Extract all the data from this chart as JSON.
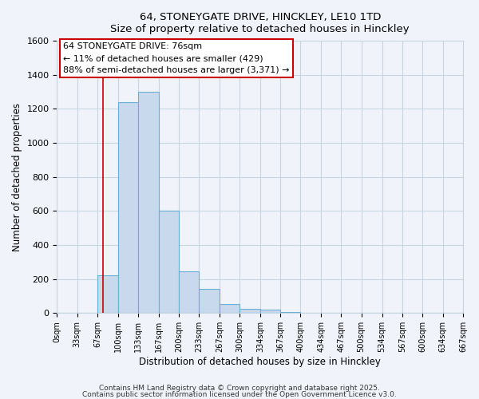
{
  "title_line1": "64, STONEYGATE DRIVE, HINCKLEY, LE10 1TD",
  "title_line2": "Size of property relative to detached houses in Hinckley",
  "xlabel": "Distribution of detached houses by size in Hinckley",
  "ylabel": "Number of detached properties",
  "footnote1": "Contains HM Land Registry data © Crown copyright and database right 2025.",
  "footnote2": "Contains public sector information licensed under the Open Government Licence v3.0.",
  "annotation_line1": "64 STONEYGATE DRIVE: 76sqm",
  "annotation_line2": "← 11% of detached houses are smaller (429)",
  "annotation_line3": "88% of semi-detached houses are larger (3,371) →",
  "bins": [
    0,
    33,
    67,
    100,
    133,
    167,
    200,
    233,
    267,
    300,
    334,
    367,
    400,
    434,
    467,
    500,
    534,
    567,
    600,
    634,
    667
  ],
  "bin_labels": [
    "0sqm",
    "33sqm",
    "67sqm",
    "100sqm",
    "133sqm",
    "167sqm",
    "200sqm",
    "233sqm",
    "267sqm",
    "300sqm",
    "334sqm",
    "367sqm",
    "400sqm",
    "434sqm",
    "467sqm",
    "500sqm",
    "534sqm",
    "567sqm",
    "600sqm",
    "634sqm",
    "667sqm"
  ],
  "counts": [
    0,
    0,
    220,
    1240,
    1300,
    600,
    245,
    140,
    55,
    25,
    20,
    5,
    2,
    0,
    0,
    0,
    0,
    0,
    0,
    0
  ],
  "bar_color": "#c8d8ed",
  "bar_edge_color": "#6baed6",
  "redline_x": 76,
  "grid_color": "#c8d4e0",
  "bg_color": "#f0f4fa",
  "plot_bg_color": "#f0f4fa",
  "annotation_box_color": "#ffffff",
  "annotation_box_border": "#cc0000",
  "ylim": [
    0,
    1600
  ],
  "yticks": [
    0,
    200,
    400,
    600,
    800,
    1000,
    1200,
    1400,
    1600
  ]
}
